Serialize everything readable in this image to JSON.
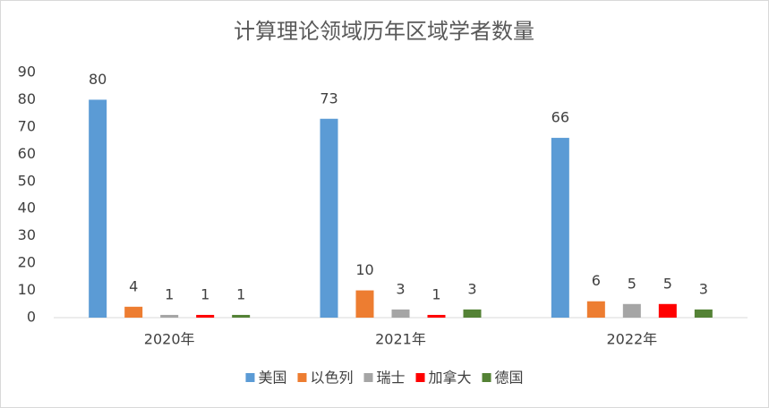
{
  "chart_data": {
    "type": "bar",
    "title": "计算理论领域历年区域学者数量",
    "categories": [
      "2020年",
      "2021年",
      "2022年"
    ],
    "series": [
      {
        "name": "美国",
        "color": "#5b9bd5",
        "values": [
          80,
          73,
          66
        ]
      },
      {
        "name": "以色列",
        "color": "#ed7d31",
        "values": [
          4,
          10,
          6
        ]
      },
      {
        "name": "瑞士",
        "color": "#a5a5a5",
        "values": [
          1,
          3,
          5
        ]
      },
      {
        "name": "加拿大",
        "color": "#ff0000",
        "values": [
          1,
          1,
          5
        ]
      },
      {
        "name": "德国",
        "color": "#548235",
        "values": [
          1,
          3,
          3
        ]
      }
    ],
    "ylim": [
      0,
      90
    ],
    "yticks": [
      0,
      10,
      20,
      30,
      40,
      50,
      60,
      70,
      80,
      90
    ],
    "grid": false,
    "legend": "bottom"
  }
}
